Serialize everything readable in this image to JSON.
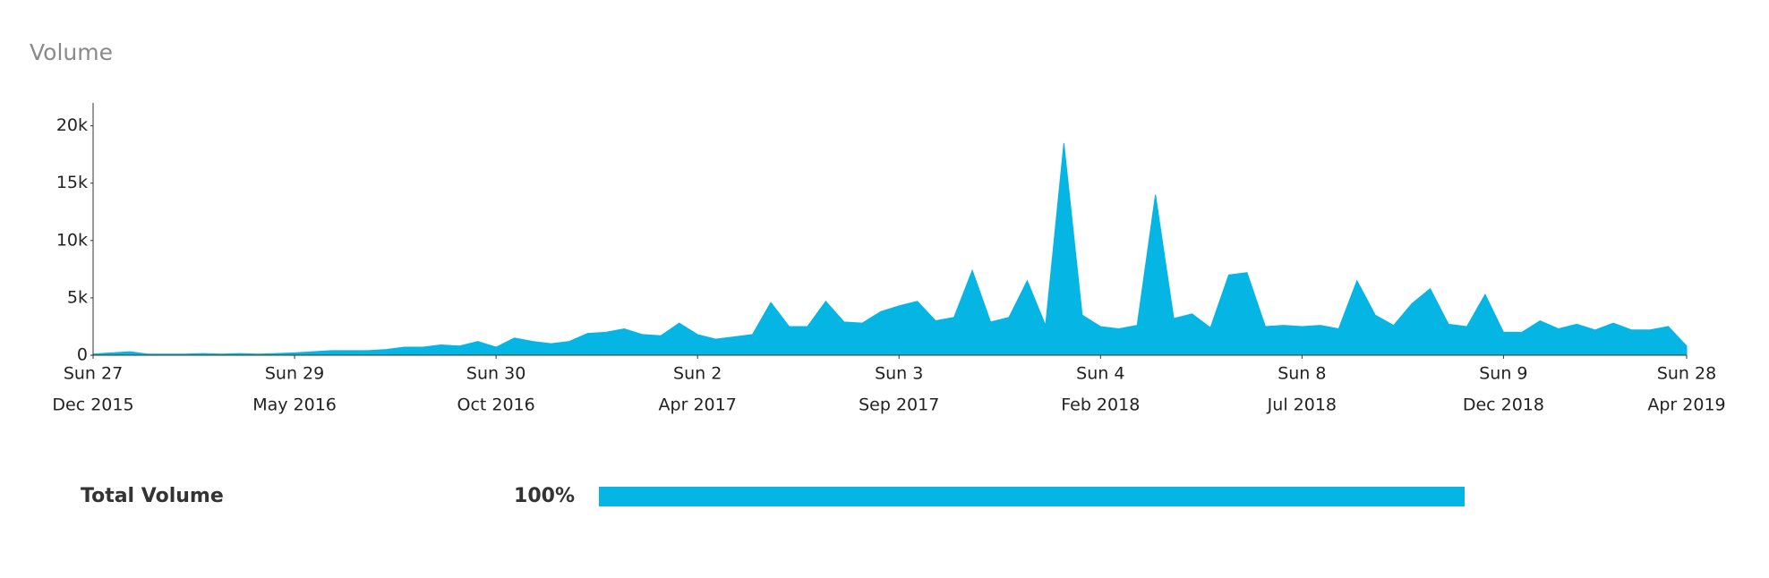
{
  "chart_data": {
    "type": "area",
    "title": "Volume",
    "color": "#05b5e3",
    "x": [
      "2015-12-27",
      "2016-01-10",
      "2016-01-24",
      "2016-02-07",
      "2016-02-21",
      "2016-03-06",
      "2016-03-20",
      "2016-04-03",
      "2016-04-17",
      "2016-05-01",
      "2016-05-15",
      "2016-05-29",
      "2016-06-12",
      "2016-06-26",
      "2016-07-10",
      "2016-07-24",
      "2016-08-07",
      "2016-08-21",
      "2016-09-04",
      "2016-09-18",
      "2016-10-02",
      "2016-10-16",
      "2016-10-30",
      "2016-11-13",
      "2016-11-27",
      "2016-12-11",
      "2016-12-25",
      "2017-01-08",
      "2017-01-22",
      "2017-02-05",
      "2017-02-19",
      "2017-03-05",
      "2017-03-19",
      "2017-04-02",
      "2017-04-16",
      "2017-04-30",
      "2017-05-14",
      "2017-05-28",
      "2017-06-11",
      "2017-06-25",
      "2017-07-09",
      "2017-07-23",
      "2017-08-06",
      "2017-08-20",
      "2017-09-03",
      "2017-09-17",
      "2017-10-01",
      "2017-10-15",
      "2017-10-29",
      "2017-11-12",
      "2017-11-26",
      "2017-12-10",
      "2017-12-24",
      "2018-01-07",
      "2018-01-21",
      "2018-02-04",
      "2018-02-18",
      "2018-03-04",
      "2018-03-18",
      "2018-04-01",
      "2018-04-15",
      "2018-04-29",
      "2018-05-13",
      "2018-05-27",
      "2018-06-10",
      "2018-06-24",
      "2018-07-08",
      "2018-07-22",
      "2018-08-05",
      "2018-08-19",
      "2018-09-02",
      "2018-09-16",
      "2018-09-30",
      "2018-10-14",
      "2018-10-28",
      "2018-11-11",
      "2018-11-25",
      "2018-12-09",
      "2018-12-23",
      "2019-01-06",
      "2019-01-20",
      "2019-02-03",
      "2019-02-17",
      "2019-03-03",
      "2019-03-17",
      "2019-03-31",
      "2019-04-14",
      "2019-04-28"
    ],
    "values": [
      100,
      200,
      300,
      100,
      100,
      100,
      150,
      100,
      150,
      100,
      150,
      200,
      300,
      400,
      400,
      400,
      500,
      700,
      700,
      900,
      800,
      1200,
      700,
      1500,
      1200,
      1000,
      1200,
      1900,
      2000,
      2300,
      1800,
      1700,
      2800,
      1800,
      1400,
      1600,
      1800,
      4600,
      2500,
      2500,
      4700,
      2900,
      2800,
      3800,
      4300,
      4700,
      3000,
      3300,
      7400,
      2900,
      3300,
      6500,
      2600,
      18500,
      3500,
      2500,
      2300,
      2600,
      14000,
      3200,
      3600,
      2400,
      7000,
      7200,
      2500,
      2600,
      2500,
      2600,
      2300,
      6500,
      3500,
      2600,
      4500,
      5800,
      2700,
      2500,
      5300,
      2000,
      2000,
      3000,
      2300,
      2700,
      2200,
      2800,
      2200,
      2200,
      2500,
      800
    ],
    "xlim": [
      "2015-12-27",
      "2019-04-28"
    ],
    "xticks": [
      {
        "value": "2015-12-27",
        "day": "Sun 27",
        "month": "Dec 2015"
      },
      {
        "value": "2016-05-29",
        "day": "Sun 29",
        "month": "May 2016"
      },
      {
        "value": "2016-10-30",
        "day": "Sun 30",
        "month": "Oct 2016"
      },
      {
        "value": "2017-04-02",
        "day": "Sun 2",
        "month": "Apr 2017"
      },
      {
        "value": "2017-09-03",
        "day": "Sun 3",
        "month": "Sep 2017"
      },
      {
        "value": "2018-02-04",
        "day": "Sun 4",
        "month": "Feb 2018"
      },
      {
        "value": "2018-07-08",
        "day": "Sun 8",
        "month": "Jul 2018"
      },
      {
        "value": "2018-12-09",
        "day": "Sun 9",
        "month": "Dec 2018"
      },
      {
        "value": "2019-04-28",
        "day": "Sun 28",
        "month": "Apr 2019"
      }
    ],
    "ylim": [
      0,
      22000
    ],
    "yticks": [
      0,
      {
        "value": 5000,
        "label": "5k"
      },
      {
        "value": 10000,
        "label": "10k"
      },
      {
        "value": 15000,
        "label": "15k"
      },
      {
        "value": 20000,
        "label": "20k"
      }
    ],
    "grid": false
  },
  "breakdown": {
    "rows": [
      {
        "name": "Total Volume",
        "value": 100,
        "value_label": "100%",
        "color": "#05b5e3"
      }
    ]
  }
}
